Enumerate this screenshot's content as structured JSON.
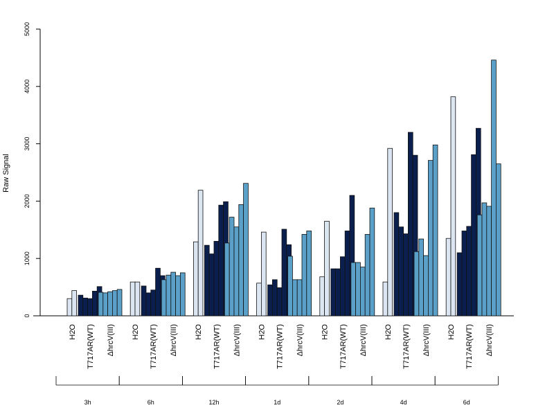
{
  "chart_data": {
    "type": "bar",
    "title": "",
    "xlabel": "",
    "ylabel": "Raw Signal",
    "ylim": [
      0,
      5000
    ],
    "yticks": [
      0,
      1000,
      2000,
      3000,
      4000,
      5000
    ],
    "grid": false,
    "colors": {
      "H2O": "#dce6f2",
      "T717AR(WT)": "#0b1f4f",
      "ΔhrcV(III)": "#5aa0c8"
    },
    "groups": [
      {
        "time": "3h",
        "conditions": [
          {
            "label": "H2O",
            "values": [
              300,
              440
            ]
          },
          {
            "label": "T717AR(WT)",
            "values": [
              360,
              310,
              300,
              430,
              510
            ]
          },
          {
            "label": "ΔhrcV(III)",
            "values": [
              410,
              400,
              420,
              440,
              460
            ]
          }
        ]
      },
      {
        "time": "6h",
        "conditions": [
          {
            "label": "H2O",
            "values": [
              590,
              590
            ]
          },
          {
            "label": "T717AR(WT)",
            "values": [
              520,
              400,
              450,
              830,
              700
            ]
          },
          {
            "label": "ΔhrcV(III)",
            "values": [
              630,
              710,
              760,
              700,
              750
            ]
          }
        ]
      },
      {
        "time": "12h",
        "conditions": [
          {
            "label": "H2O",
            "values": [
              1290,
              2190
            ]
          },
          {
            "label": "T717AR(WT)",
            "values": [
              1230,
              1080,
              1300,
              1930,
              1990
            ]
          },
          {
            "label": "ΔhrcV(III)",
            "values": [
              1270,
              1720,
              1550,
              1940,
              2310
            ]
          }
        ]
      },
      {
        "time": "1d",
        "conditions": [
          {
            "label": "H2O",
            "values": [
              570,
              1460
            ]
          },
          {
            "label": "T717AR(WT)",
            "values": [
              540,
              630,
              490,
              1510,
              1240
            ]
          },
          {
            "label": "ΔhrcV(III)",
            "values": [
              1040,
              630,
              630,
              1420,
              1480
            ]
          }
        ]
      },
      {
        "time": "2d",
        "conditions": [
          {
            "label": "H2O",
            "values": [
              680,
              1650
            ]
          },
          {
            "label": "T717AR(WT)",
            "values": [
              820,
              820,
              1030,
              1480,
              2100
            ]
          },
          {
            "label": "ΔhrcV(III)",
            "values": [
              930,
              930,
              850,
              1420,
              1880
            ]
          }
        ]
      },
      {
        "time": "4d",
        "conditions": [
          {
            "label": "H2O",
            "values": [
              590,
              2920
            ]
          },
          {
            "label": "T717AR(WT)",
            "values": [
              1800,
              1550,
              1430,
              3200,
              2800
            ]
          },
          {
            "label": "ΔhrcV(III)",
            "values": [
              1120,
              1340,
              1050,
              2710,
              2980
            ]
          }
        ]
      },
      {
        "time": "6d",
        "conditions": [
          {
            "label": "H2O",
            "values": [
              1350,
              3820
            ]
          },
          {
            "label": "T717AR(WT)",
            "values": [
              1100,
              1480,
              1560,
              2810,
              3270
            ]
          },
          {
            "label": "ΔhrcV(III)",
            "values": [
              1760,
              1970,
              1910,
              4460,
              2650
            ]
          }
        ]
      }
    ]
  }
}
